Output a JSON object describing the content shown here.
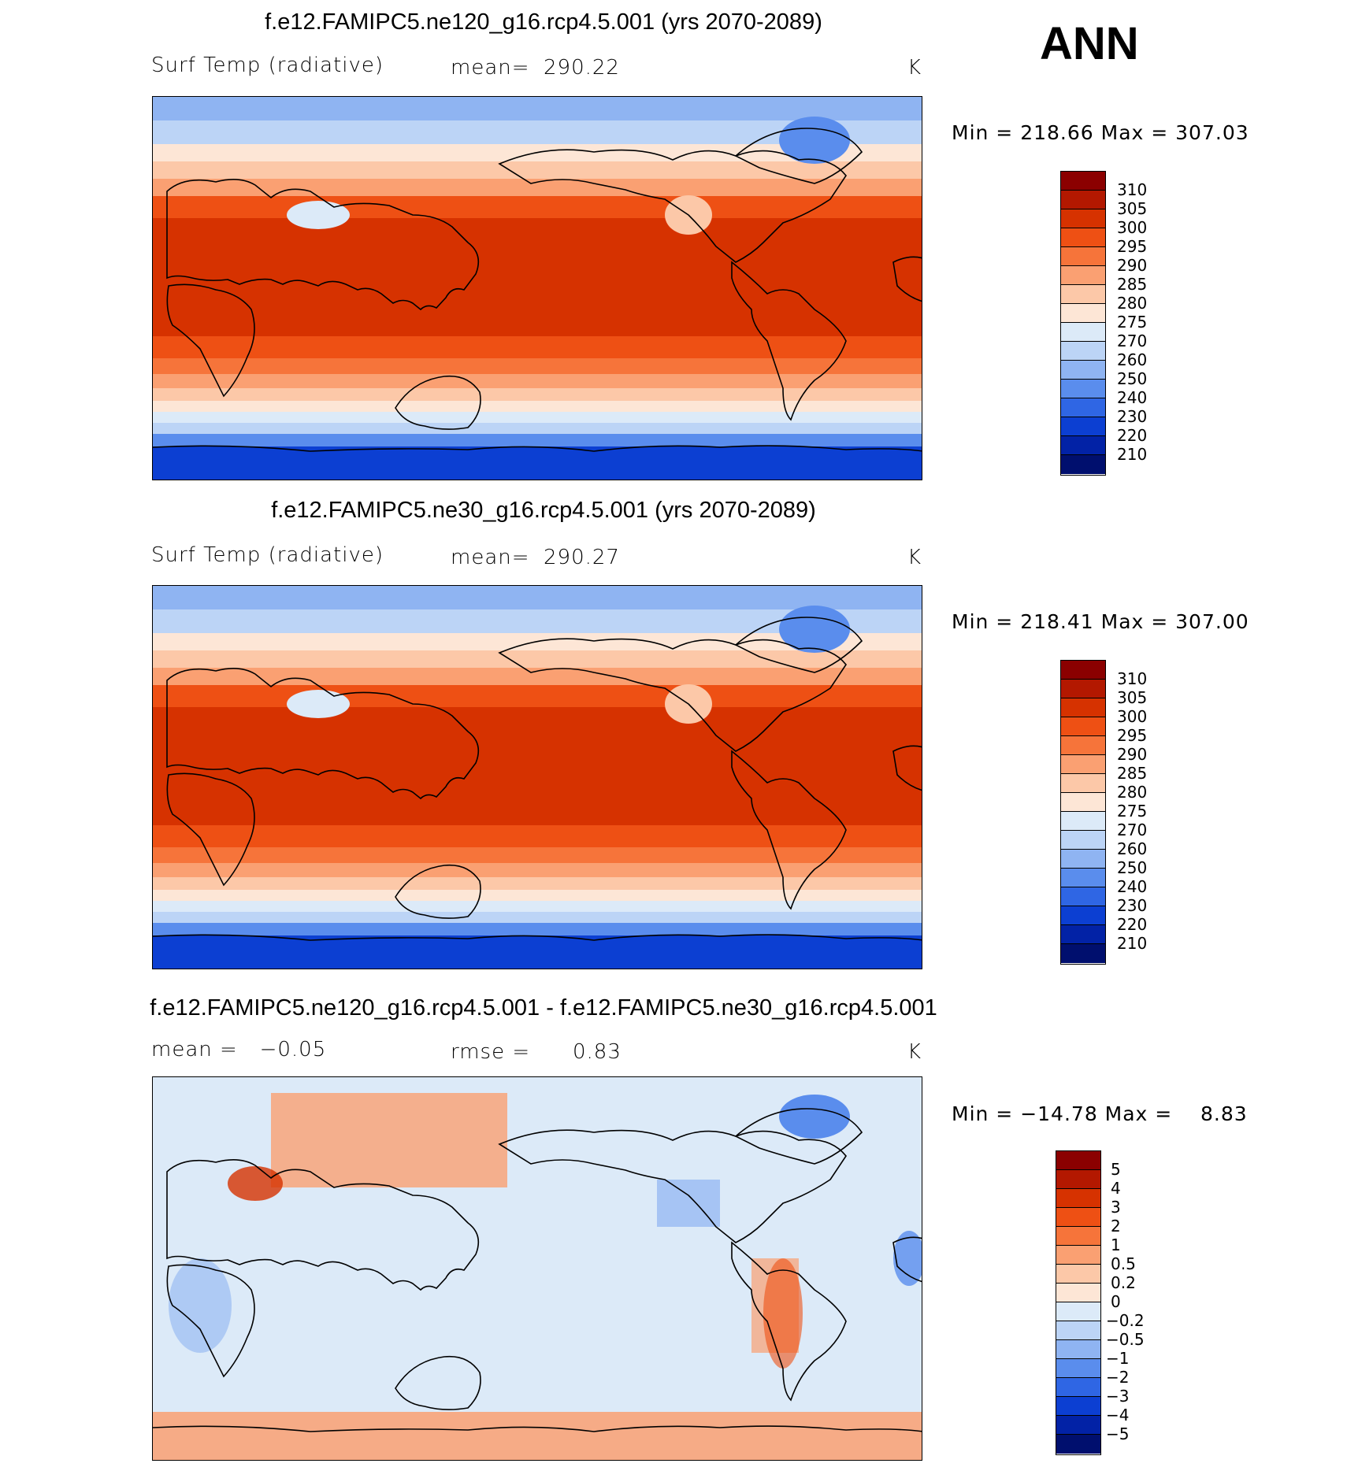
{
  "season": "ANN",
  "units": "K",
  "panels": [
    {
      "title": "f.e12.FAMIPC5.ne120_g16.rcp4.5.001 (yrs 2070-2089)",
      "left_label": "Surf Temp (radiative)",
      "stat_label": "mean=",
      "stat_value": "290.22",
      "units": "K",
      "minmax": "Min = 218.66 Max = 307.03"
    },
    {
      "title": "f.e12.FAMIPC5.ne30_g16.rcp4.5.001 (yrs 2070-2089)",
      "left_label": "Surf Temp (radiative)",
      "stat_label": "mean=",
      "stat_value": "290.27",
      "units": "K",
      "minmax": "Min = 218.41 Max = 307.00"
    },
    {
      "title": "f.e12.FAMIPC5.ne120_g16.rcp4.5.001 - f.e12.FAMIPC5.ne30_g16.rcp4.5.001",
      "left_label": "mean =   −0.05",
      "stat_label": "rmse =",
      "stat_value": "0.83",
      "units": "K",
      "minmax": "Min = −14.78 Max =    8.83"
    }
  ],
  "chart_data": [
    {
      "type": "heatmap",
      "title": "f.e12.FAMIPC5.ne120_g16.rcp4.5.001 (yrs 2070-2089)",
      "variable": "Surf Temp (radiative)",
      "units": "K",
      "mean": 290.22,
      "min": 218.66,
      "max": 307.03,
      "colorbar_levels": [
        "310",
        "305",
        "300",
        "295",
        "290",
        "285",
        "280",
        "275",
        "270",
        "260",
        "250",
        "240",
        "230",
        "220",
        "210"
      ],
      "colorbar_colors": [
        "#8b0000",
        "#b31800",
        "#d63200",
        "#ee5014",
        "#f6743a",
        "#faa072",
        "#fcc8a8",
        "#fde6d6",
        "#dceaf8",
        "#bcd4f6",
        "#8fb4f2",
        "#5a8ded",
        "#2f66e4",
        "#0c3fd2",
        "#0222a6",
        "#000f6e"
      ]
    },
    {
      "type": "heatmap",
      "title": "f.e12.FAMIPC5.ne30_g16.rcp4.5.001 (yrs 2070-2089)",
      "variable": "Surf Temp (radiative)",
      "units": "K",
      "mean": 290.27,
      "min": 218.41,
      "max": 307.0,
      "colorbar_levels": [
        "310",
        "305",
        "300",
        "295",
        "290",
        "285",
        "280",
        "275",
        "270",
        "260",
        "250",
        "240",
        "230",
        "220",
        "210"
      ],
      "colorbar_colors": [
        "#8b0000",
        "#b31800",
        "#d63200",
        "#ee5014",
        "#f6743a",
        "#faa072",
        "#fcc8a8",
        "#fde6d6",
        "#dceaf8",
        "#bcd4f6",
        "#8fb4f2",
        "#5a8ded",
        "#2f66e4",
        "#0c3fd2",
        "#0222a6",
        "#000f6e"
      ]
    },
    {
      "type": "heatmap",
      "title": "f.e12.FAMIPC5.ne120_g16.rcp4.5.001 - f.e12.FAMIPC5.ne30_g16.rcp4.5.001",
      "units": "K",
      "mean": -0.05,
      "rmse": 0.83,
      "min": -14.78,
      "max": 8.83,
      "colorbar_levels": [
        "5",
        "4",
        "3",
        "2",
        "1",
        "0.5",
        "0.2",
        "0",
        "−0.2",
        "−0.5",
        "−1",
        "−2",
        "−3",
        "−4",
        "−5"
      ],
      "colorbar_colors": [
        "#8b0000",
        "#b31800",
        "#d63200",
        "#ee5014",
        "#f6743a",
        "#faa072",
        "#fcc8a8",
        "#fde6d6",
        "#dceaf8",
        "#bcd4f6",
        "#8fb4f2",
        "#5a8ded",
        "#2f66e4",
        "#0c3fd2",
        "#0222a6",
        "#000f6e"
      ]
    }
  ]
}
